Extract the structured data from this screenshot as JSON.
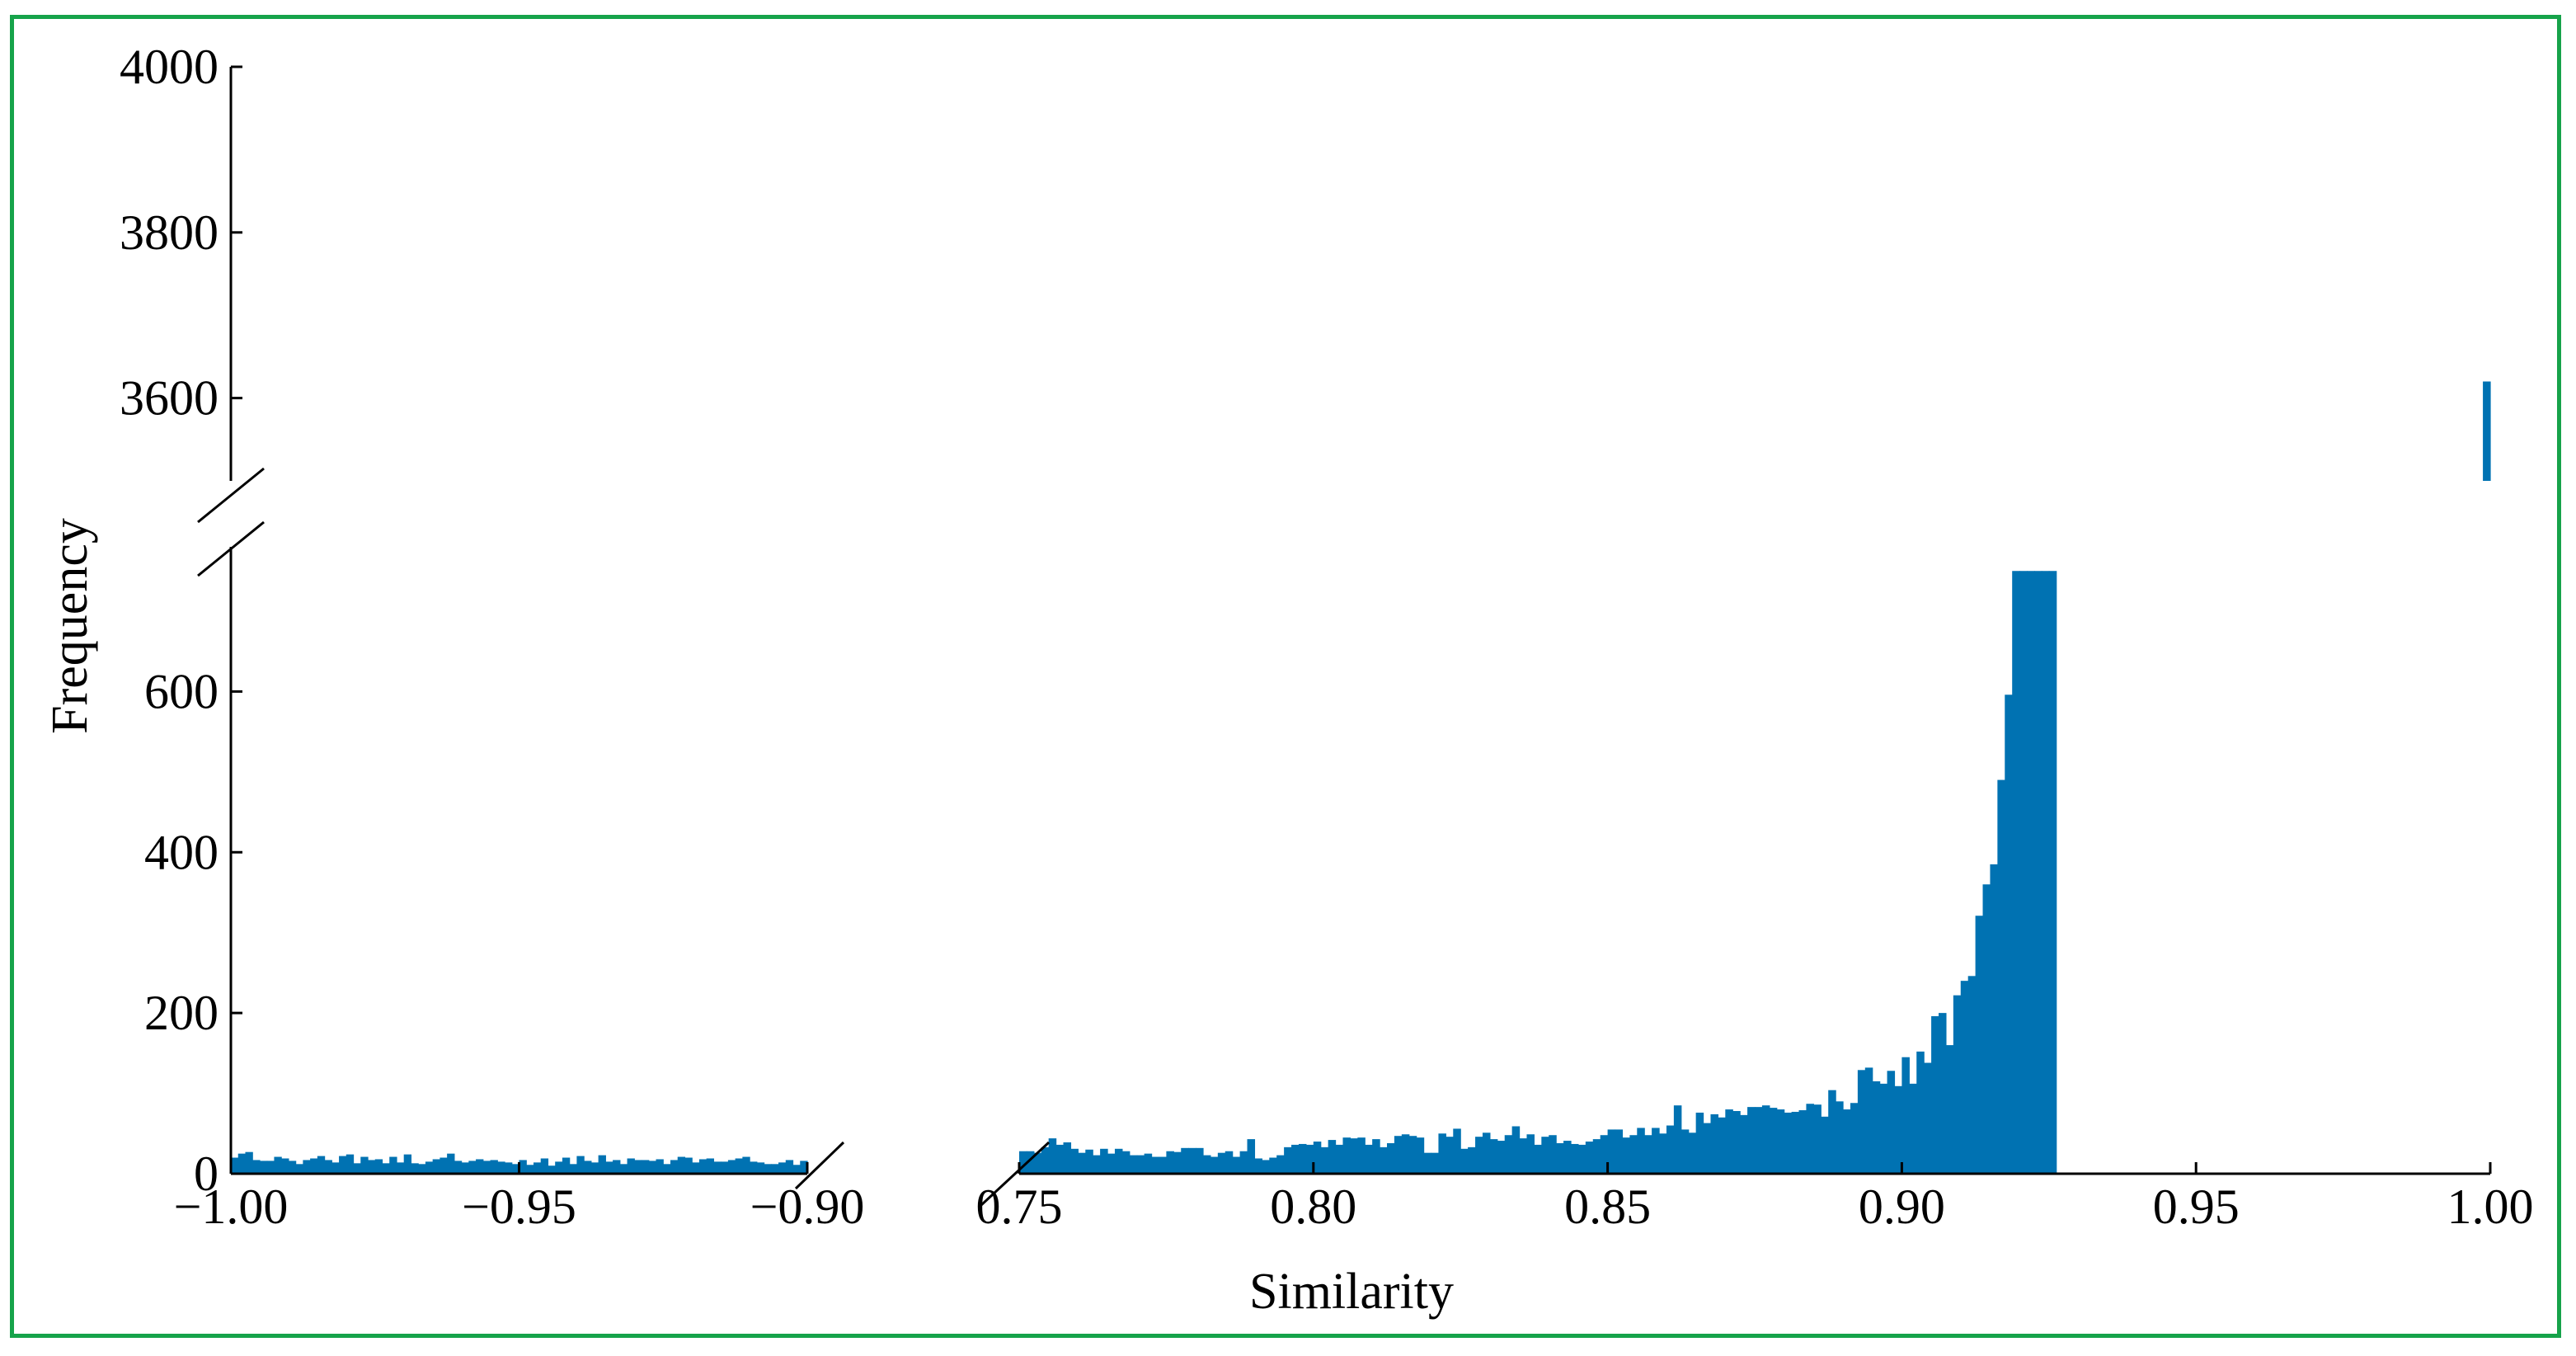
{
  "chart_data": {
    "type": "bar",
    "title": "",
    "xlabel": "Similarity",
    "ylabel": "Frequency",
    "color": "#0072b2",
    "frame_color": "#16a34a",
    "x_axis_broken": true,
    "y_axis_broken": true,
    "x_segments": [
      {
        "xlim": [
          -1.0,
          -0.9
        ],
        "ticks": [
          -1.0,
          -0.95,
          -0.9
        ],
        "tick_labels": [
          "−1.00",
          "−0.95",
          "−0.90"
        ]
      },
      {
        "xlim": [
          0.75,
          1.0
        ],
        "ticks": [
          0.75,
          0.8,
          0.85,
          0.9,
          0.95,
          1.0
        ],
        "tick_labels": [
          "0.75",
          "0.80",
          "0.85",
          "0.90",
          "0.95",
          "1.00"
        ]
      }
    ],
    "y_segments": [
      {
        "ylim": [
          0,
          780
        ],
        "ticks": [
          0,
          200,
          400,
          600
        ],
        "tick_labels": [
          "0",
          "200",
          "400",
          "600"
        ]
      },
      {
        "ylim": [
          3500,
          4000
        ],
        "ticks": [
          3600,
          3800,
          4000
        ],
        "tick_labels": [
          "3600",
          "3800",
          "4000"
        ]
      }
    ],
    "bin_width": 0.00125,
    "series": [
      {
        "x_start": -1.0,
        "values": [
          20,
          25,
          27,
          17,
          16,
          16,
          21,
          19,
          16,
          12,
          17,
          19,
          22,
          17,
          14,
          22,
          24,
          13,
          21,
          17,
          18,
          13,
          21,
          14,
          24,
          13,
          12,
          15,
          18,
          20,
          25,
          16,
          14,
          16,
          18,
          16,
          17,
          15,
          14,
          12,
          17,
          11,
          14,
          19,
          10,
          15,
          20,
          12,
          22,
          16,
          14,
          23,
          15,
          17,
          12,
          19,
          17,
          17,
          16,
          18,
          12,
          17,
          21,
          20,
          14,
          18,
          19,
          15,
          15,
          17,
          19,
          21,
          15,
          14,
          12,
          12,
          14,
          17,
          11,
          16
        ]
      },
      {
        "x_start": 0.75,
        "values": [
          28,
          28,
          26,
          33,
          44,
          36,
          39,
          31,
          26,
          30,
          23,
          31,
          25,
          31,
          28,
          23,
          23,
          25,
          21,
          21,
          28,
          27,
          32,
          32,
          32,
          23,
          21,
          26,
          28,
          21,
          28,
          43,
          19,
          17,
          20,
          23,
          33,
          36,
          37,
          36,
          40,
          33,
          42,
          36,
          45,
          44,
          45,
          36,
          43,
          33,
          38,
          47,
          49,
          47,
          45,
          26,
          26,
          50,
          46,
          56,
          31,
          33,
          46,
          51,
          43,
          41,
          48,
          59,
          44,
          49,
          36,
          46,
          48,
          38,
          41,
          37,
          36,
          40,
          43,
          48,
          55,
          55,
          45,
          48,
          57,
          48,
          57,
          50,
          60,
          85,
          55,
          51,
          76,
          63,
          74,
          70,
          80,
          78,
          73,
          83,
          83,
          85,
          82,
          80,
          76,
          77,
          79,
          87,
          86,
          71,
          104,
          90,
          80,
          88,
          129,
          132,
          115,
          112,
          128,
          109,
          145,
          112,
          152,
          138,
          196,
          200,
          160,
          222,
          240,
          246,
          321,
          360,
          385,
          490,
          596,
          750,
          750,
          750,
          750,
          750,
          750
        ]
      }
    ],
    "highlight_bar": {
      "x": 0.99875,
      "value": 3620
    }
  }
}
